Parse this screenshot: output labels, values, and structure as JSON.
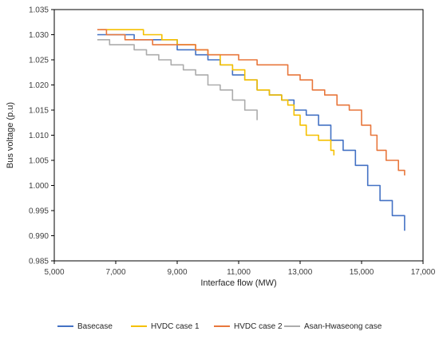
{
  "chart_data": {
    "type": "line",
    "title": "",
    "xlabel": "Interface flow (MW)",
    "ylabel": "Bus voltage (p.u)",
    "xlim": [
      5000,
      17000
    ],
    "ylim": [
      0.985,
      1.035
    ],
    "x_ticks": [
      5000,
      7000,
      9000,
      11000,
      13000,
      15000,
      17000
    ],
    "x_tick_labels": [
      "5,000",
      "7,000",
      "9,000",
      "11,000",
      "13,000",
      "15,000",
      "17,000"
    ],
    "y_ticks": [
      0.985,
      0.99,
      0.995,
      1.0,
      1.005,
      1.01,
      1.015,
      1.02,
      1.025,
      1.03,
      1.035
    ],
    "y_tick_labels": [
      "0.985",
      "0.990",
      "0.995",
      "1.000",
      "1.005",
      "1.010",
      "1.015",
      "1.020",
      "1.025",
      "1.030",
      "1.035"
    ],
    "grid": false,
    "legend_position": "bottom",
    "series": [
      {
        "name": "Basecase",
        "color": "#4472C4",
        "points": [
          [
            6400,
            1.03
          ],
          [
            7300,
            1.03
          ],
          [
            7600,
            1.029
          ],
          [
            8700,
            1.029
          ],
          [
            9000,
            1.027
          ],
          [
            9400,
            1.027
          ],
          [
            9600,
            1.026
          ],
          [
            10000,
            1.025
          ],
          [
            10400,
            1.024
          ],
          [
            10800,
            1.022
          ],
          [
            11200,
            1.021
          ],
          [
            11600,
            1.019
          ],
          [
            12000,
            1.018
          ],
          [
            12400,
            1.017
          ],
          [
            12800,
            1.015
          ],
          [
            13200,
            1.014
          ],
          [
            13600,
            1.012
          ],
          [
            14000,
            1.009
          ],
          [
            14400,
            1.007
          ],
          [
            14800,
            1.004
          ],
          [
            15200,
            1.0
          ],
          [
            15600,
            0.997
          ],
          [
            16000,
            0.994
          ],
          [
            16400,
            0.991
          ]
        ]
      },
      {
        "name": "HVDC case 1",
        "color": "#F5C000",
        "points": [
          [
            6500,
            1.031
          ],
          [
            7600,
            1.031
          ],
          [
            7900,
            1.03
          ],
          [
            8500,
            1.029
          ],
          [
            9000,
            1.028
          ],
          [
            9600,
            1.027
          ],
          [
            10000,
            1.026
          ],
          [
            10400,
            1.024
          ],
          [
            10800,
            1.023
          ],
          [
            11200,
            1.021
          ],
          [
            11600,
            1.019
          ],
          [
            12000,
            1.018
          ],
          [
            12400,
            1.017
          ],
          [
            12600,
            1.016
          ],
          [
            12800,
            1.014
          ],
          [
            13000,
            1.012
          ],
          [
            13200,
            1.01
          ],
          [
            13600,
            1.009
          ],
          [
            14000,
            1.007
          ],
          [
            14100,
            1.006
          ]
        ]
      },
      {
        "name": "HVDC case 2",
        "color": "#E8773C",
        "points": [
          [
            6400,
            1.031
          ],
          [
            6700,
            1.03
          ],
          [
            7000,
            1.03
          ],
          [
            7300,
            1.029
          ],
          [
            7900,
            1.029
          ],
          [
            8200,
            1.028
          ],
          [
            9000,
            1.028
          ],
          [
            9600,
            1.027
          ],
          [
            10000,
            1.026
          ],
          [
            10800,
            1.026
          ],
          [
            11000,
            1.025
          ],
          [
            11400,
            1.025
          ],
          [
            11600,
            1.024
          ],
          [
            12200,
            1.024
          ],
          [
            12600,
            1.022
          ],
          [
            13000,
            1.021
          ],
          [
            13400,
            1.019
          ],
          [
            13800,
            1.018
          ],
          [
            14200,
            1.016
          ],
          [
            14600,
            1.015
          ],
          [
            15000,
            1.012
          ],
          [
            15300,
            1.01
          ],
          [
            15500,
            1.007
          ],
          [
            15800,
            1.005
          ],
          [
            16200,
            1.003
          ],
          [
            16400,
            1.002
          ]
        ]
      },
      {
        "name": "Asan-Hwaseong case",
        "color": "#ACACAC",
        "points": [
          [
            6400,
            1.029
          ],
          [
            6800,
            1.028
          ],
          [
            7300,
            1.028
          ],
          [
            7600,
            1.027
          ],
          [
            8000,
            1.026
          ],
          [
            8400,
            1.025
          ],
          [
            8800,
            1.024
          ],
          [
            9200,
            1.023
          ],
          [
            9600,
            1.022
          ],
          [
            10000,
            1.02
          ],
          [
            10400,
            1.019
          ],
          [
            10800,
            1.017
          ],
          [
            11200,
            1.015
          ],
          [
            11600,
            1.013
          ]
        ]
      }
    ]
  }
}
